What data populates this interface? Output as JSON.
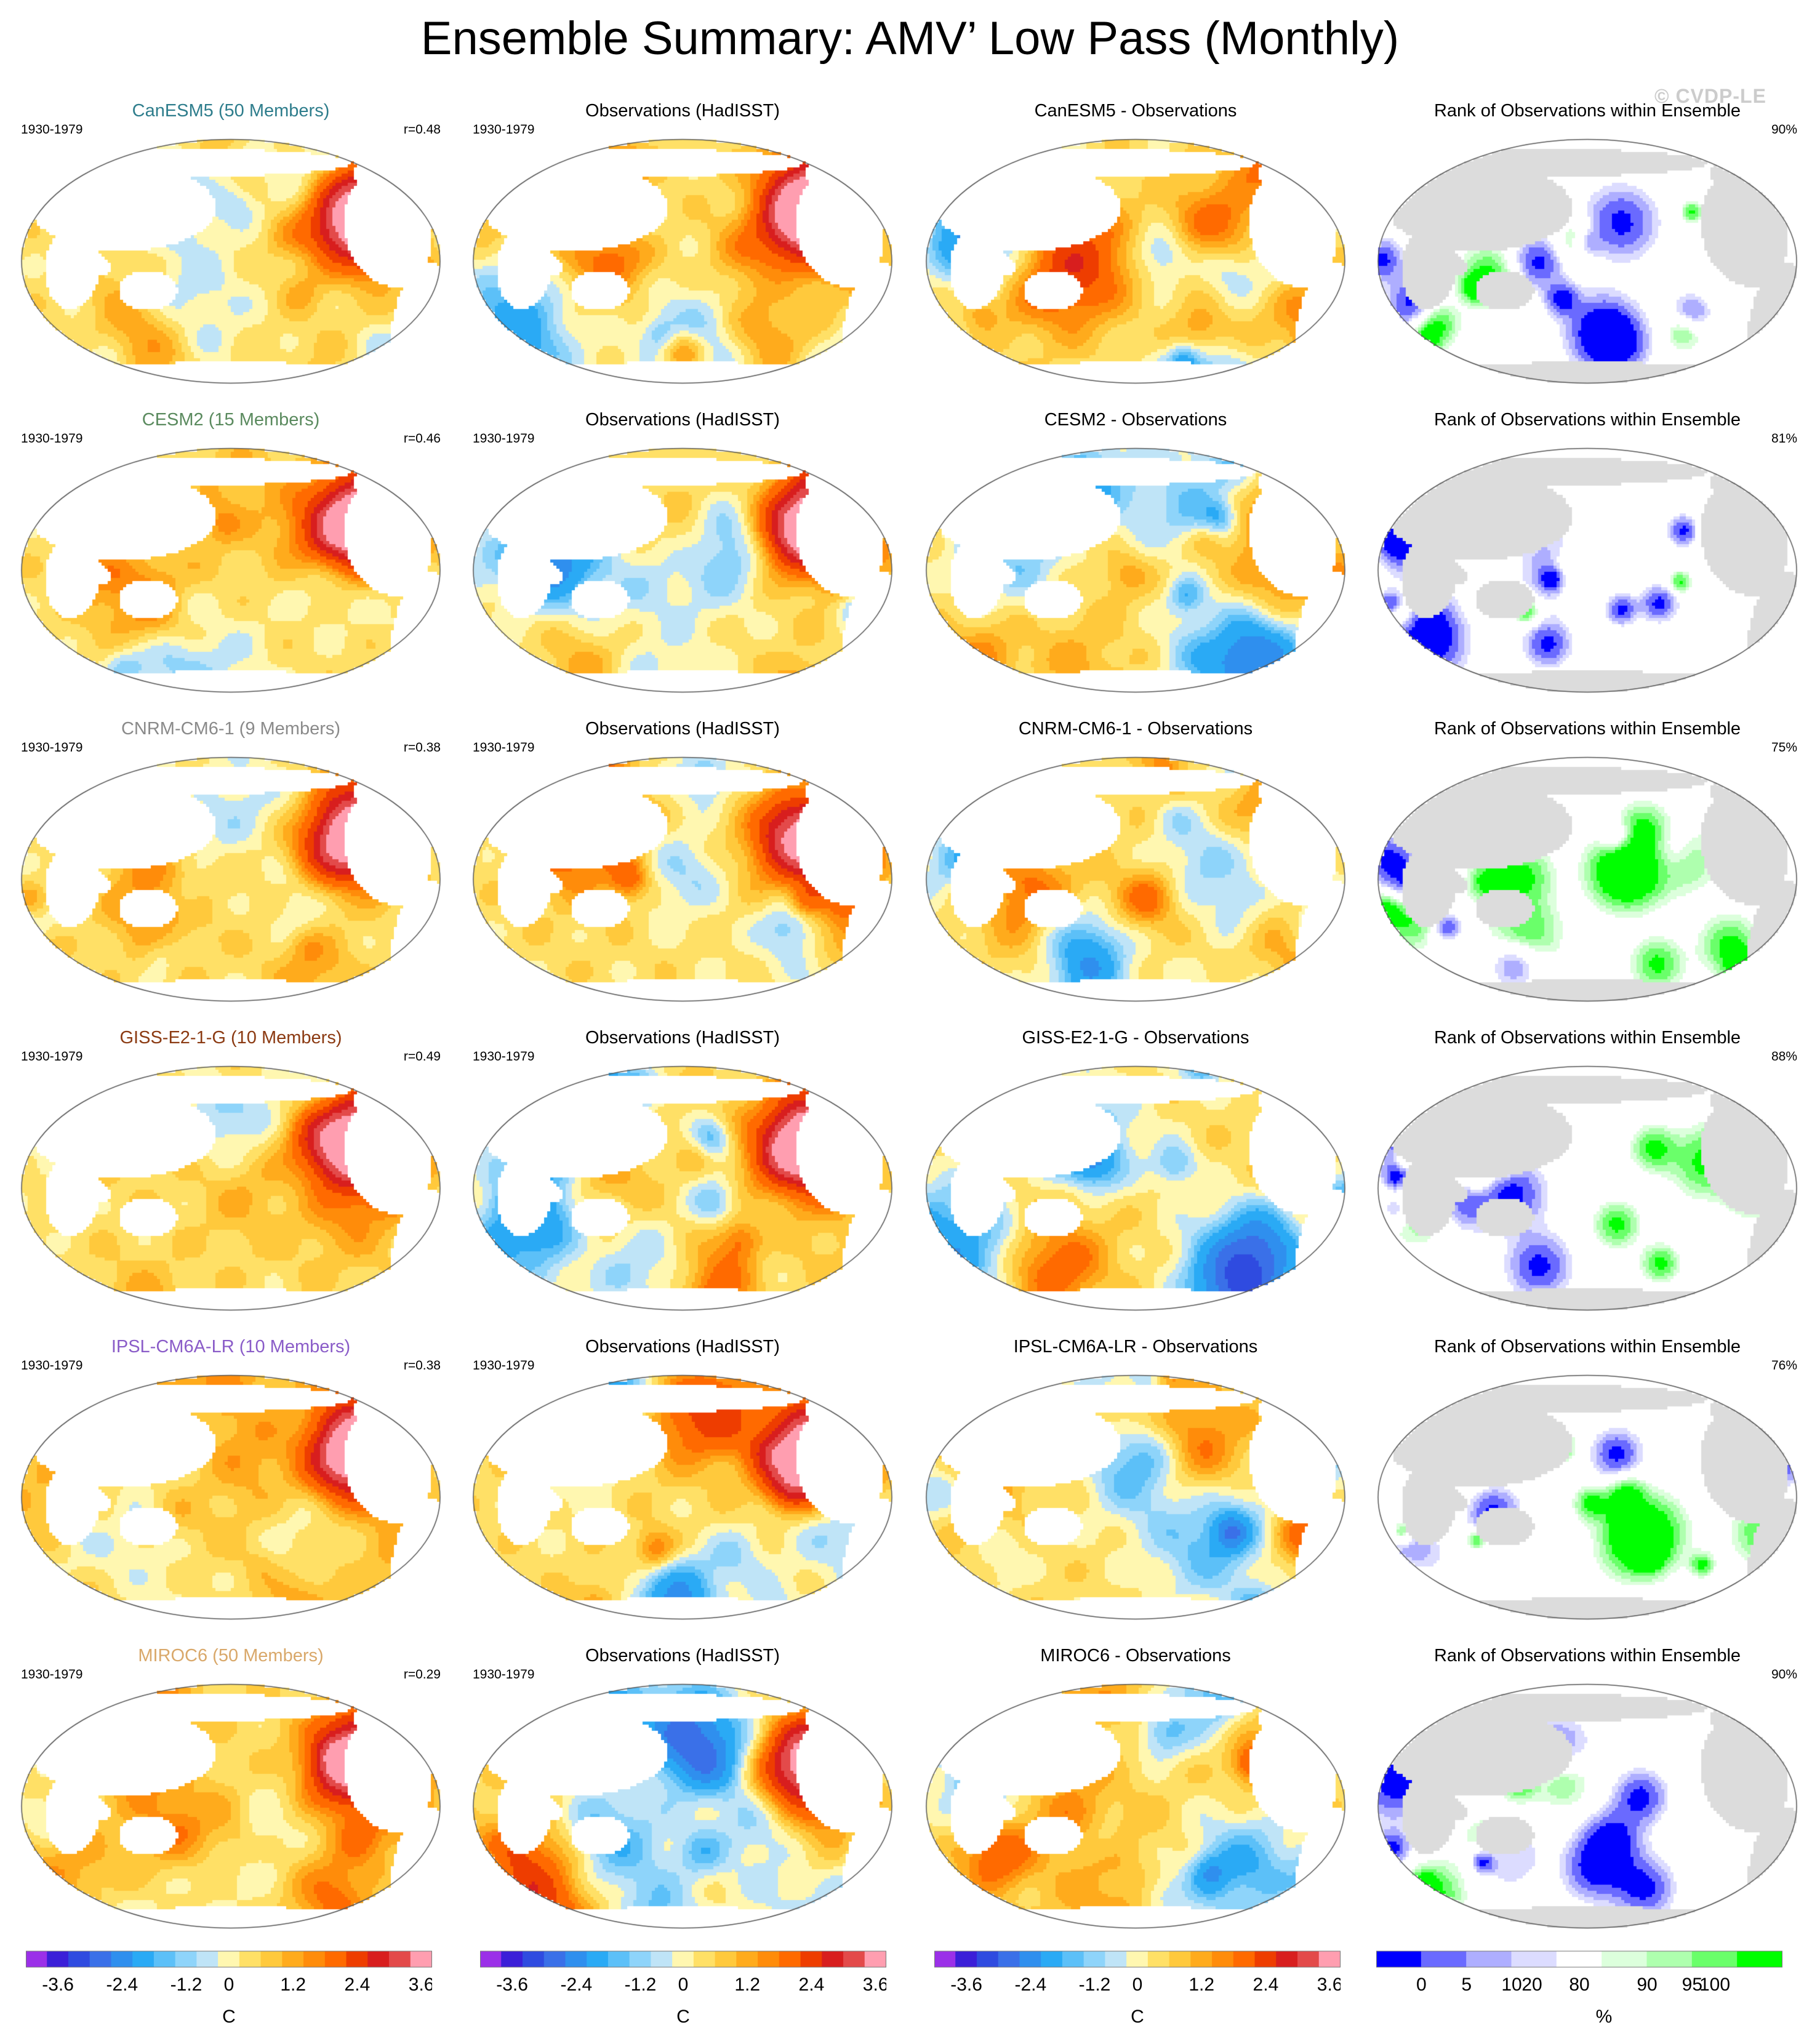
{
  "title": "Ensemble Summary: AMV’ Low Pass (Monthly)",
  "copyright": "© CVDP-LE",
  "land_color": "#ffffff",
  "rank_land_color": "#dcdcdc",
  "rows": [
    {
      "model_title": "CanESM5 (50 Members)",
      "model_color": "#2e7d8c",
      "period": "1930-1979",
      "r": "r=0.48",
      "obs_title": "Observations (HadISST)",
      "obs_period": "1930-1979",
      "diff_title": "CanESM5 - Observations",
      "rank_title": "Rank of Observations within Ensemble",
      "rank_pct": "90%"
    },
    {
      "model_title": "CESM2 (15 Members)",
      "model_color": "#5a8a5e",
      "period": "1930-1979",
      "r": "r=0.46",
      "obs_title": "Observations (HadISST)",
      "obs_period": "1930-1979",
      "diff_title": "CESM2 - Observations",
      "rank_title": "Rank of Observations within Ensemble",
      "rank_pct": "81%"
    },
    {
      "model_title": "CNRM-CM6-1 (9 Members)",
      "model_color": "#8a8a8a",
      "period": "1930-1979",
      "r": "r=0.38",
      "obs_title": "Observations (HadISST)",
      "obs_period": "1930-1979",
      "diff_title": "CNRM-CM6-1 - Observations",
      "rank_title": "Rank of Observations within Ensemble",
      "rank_pct": "75%"
    },
    {
      "model_title": "GISS-E2-1-G (10 Members)",
      "model_color": "#8b3a12",
      "period": "1930-1979",
      "r": "r=0.49",
      "obs_title": "Observations (HadISST)",
      "obs_period": "1930-1979",
      "diff_title": "GISS-E2-1-G - Observations",
      "rank_title": "Rank of Observations within Ensemble",
      "rank_pct": "88%"
    },
    {
      "model_title": "IPSL-CM6A-LR (10 Members)",
      "model_color": "#8a5cc8",
      "period": "1930-1979",
      "r": "r=0.38",
      "obs_title": "Observations (HadISST)",
      "obs_period": "1930-1979",
      "diff_title": "IPSL-CM6A-LR - Observations",
      "rank_title": "Rank of Observations within Ensemble",
      "rank_pct": "76%"
    },
    {
      "model_title": "MIROC6 (50 Members)",
      "model_color": "#d9a86a",
      "period": "1930-1979",
      "r": "r=0.29",
      "obs_title": "Observations (HadISST)",
      "obs_period": "1930-1979",
      "diff_title": "MIROC6 - Observations",
      "rank_title": "Rank of Observations within Ensemble",
      "rank_pct": "90%"
    }
  ],
  "chart_data": {
    "type": "heatmap",
    "layout": "6 rows x 4 map columns (robinson projection)",
    "columns": [
      "model ensemble mean",
      "observations",
      "model minus observations",
      "rank of observations within ensemble"
    ],
    "temperature_colorbar": {
      "unit": "C",
      "tick_labels": [
        "-3.6",
        "-2.4",
        "-1.2",
        "0",
        "1.2",
        "2.4",
        "3.6"
      ],
      "colors": [
        "#9b30e8",
        "#3b1fd8",
        "#2f4be0",
        "#3a70e8",
        "#2f8fee",
        "#2aaaf5",
        "#5cc0f8",
        "#8ed4fa",
        "#bfe4f7",
        "#fff7b0",
        "#ffe066",
        "#ffc93c",
        "#ffab1c",
        "#ff8c0a",
        "#ff6a00",
        "#ee3d00",
        "#d81e1e",
        "#e34a4a",
        "#ff9eb0"
      ]
    },
    "rank_colorbar": {
      "unit": "%",
      "tick_labels": [
        "0",
        "5",
        "10",
        "20",
        "80",
        "90",
        "95",
        "100"
      ],
      "colors": [
        "#0000ff",
        "#6a6aff",
        "#aeaeff",
        "#dcdcff",
        "#ffffff",
        "#dcffdc",
        "#aeffae",
        "#6aff6a",
        "#00ff00"
      ]
    },
    "pattern_correlations": [
      0.48,
      0.46,
      0.38,
      0.49,
      0.38,
      0.29
    ],
    "rank_percent": [
      90,
      81,
      75,
      88,
      76,
      90
    ]
  }
}
